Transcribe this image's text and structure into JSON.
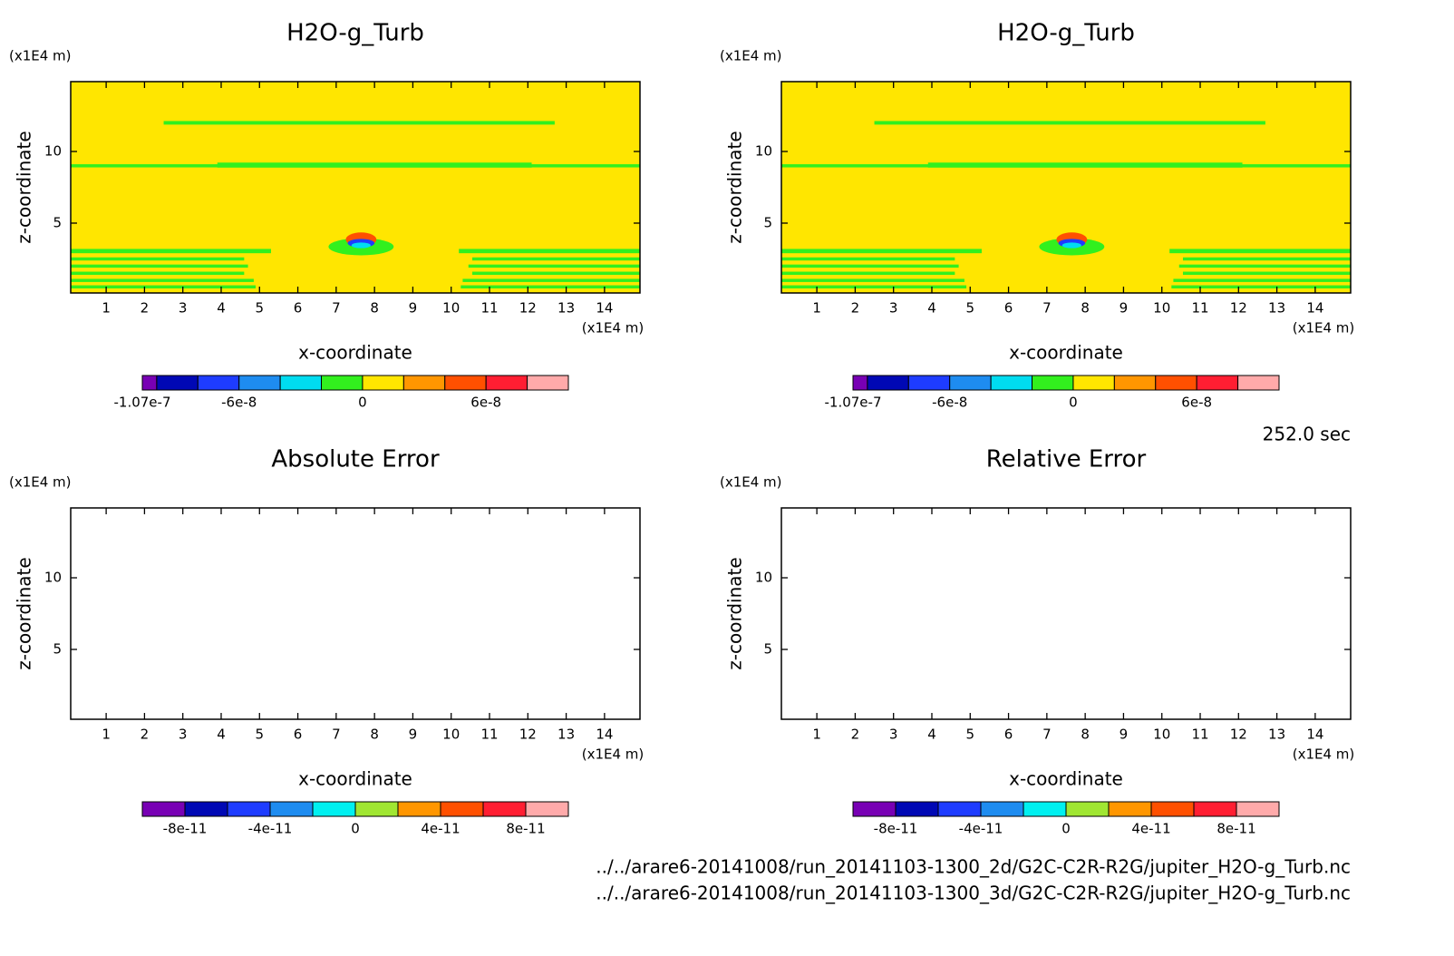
{
  "chart_data": [
    {
      "type": "contour",
      "title": "H2O-g_Turb",
      "x_label": "x-coordinate",
      "y_label": "z-coordinate",
      "x_unit": "(x1E4 m)",
      "y_unit": "(x1E4 m)",
      "xlim": [
        0.075,
        14.925
      ],
      "ylim": [
        0.125,
        14.875
      ],
      "xticks": [
        1,
        2,
        3,
        4,
        5,
        6,
        7,
        8,
        9,
        10,
        11,
        12,
        13,
        14
      ],
      "yticks": [
        5,
        10
      ],
      "colorbar": {
        "levels": [
          -1.07e-07,
          -1e-07,
          -8e-08,
          -6e-08,
          -4e-08,
          -2e-08,
          0,
          2e-08,
          4e-08,
          6e-08,
          8e-08,
          1e-07
        ],
        "colors": [
          "#7800b4",
          "#0008b4",
          "#1e3cff",
          "#1e8cf0",
          "#00dcf0",
          "#32f01e",
          "#ffe600",
          "#ff9600",
          "#ff5000",
          "#ff1e32",
          "#ffaaaa"
        ],
        "ticks": [
          -1.07e-07,
          -6e-08,
          0,
          6e-08
        ]
      }
    },
    {
      "type": "contour",
      "title": "H2O-g_Turb",
      "x_label": "x-coordinate",
      "y_label": "z-coordinate",
      "x_unit": "(x1E4 m)",
      "y_unit": "(x1E4 m)",
      "xlim": [
        0.075,
        14.925
      ],
      "ylim": [
        0.125,
        14.875
      ],
      "xticks": [
        1,
        2,
        3,
        4,
        5,
        6,
        7,
        8,
        9,
        10,
        11,
        12,
        13,
        14
      ],
      "yticks": [
        5,
        10
      ],
      "colorbar": {
        "levels": [
          -1.07e-07,
          -1e-07,
          -8e-08,
          -6e-08,
          -4e-08,
          -2e-08,
          0,
          2e-08,
          4e-08,
          6e-08,
          8e-08,
          1e-07
        ],
        "colors": [
          "#7800b4",
          "#0008b4",
          "#1e3cff",
          "#1e8cf0",
          "#00dcf0",
          "#32f01e",
          "#ffe600",
          "#ff9600",
          "#ff5000",
          "#ff1e32",
          "#ffaaaa"
        ],
        "ticks": [
          -1.07e-07,
          -6e-08,
          0,
          6e-08
        ]
      }
    },
    {
      "type": "contour",
      "title": "Absolute Error",
      "x_label": "x-coordinate",
      "y_label": "z-coordinate",
      "x_unit": "(x1E4 m)",
      "y_unit": "(x1E4 m)",
      "xlim": [
        0.075,
        14.925
      ],
      "ylim": [
        0.125,
        14.875
      ],
      "xticks": [
        1,
        2,
        3,
        4,
        5,
        6,
        7,
        8,
        9,
        10,
        11,
        12,
        13,
        14
      ],
      "yticks": [
        5,
        10
      ],
      "colorbar": {
        "levels": [
          -1e-10,
          -8e-11,
          -6e-11,
          -4e-11,
          -2e-11,
          0,
          2e-11,
          4e-11,
          6e-11,
          8e-11,
          1e-10
        ],
        "colors": [
          "#7800b4",
          "#0008b4",
          "#1e3cff",
          "#1e8cf0",
          "#00f0f0",
          "#a0e632",
          "#ff9600",
          "#ff5000",
          "#ff1e32",
          "#ffaaaa"
        ],
        "ticks": [
          -8e-11,
          -4e-11,
          0,
          4e-11,
          8e-11
        ]
      }
    },
    {
      "type": "contour",
      "title": "Relative Error",
      "x_label": "x-coordinate",
      "y_label": "z-coordinate",
      "x_unit": "(x1E4 m)",
      "y_unit": "(x1E4 m)",
      "xlim": [
        0.075,
        14.925
      ],
      "ylim": [
        0.125,
        14.875
      ],
      "xticks": [
        1,
        2,
        3,
        4,
        5,
        6,
        7,
        8,
        9,
        10,
        11,
        12,
        13,
        14
      ],
      "yticks": [
        5,
        10
      ],
      "colorbar": {
        "levels": [
          -1e-10,
          -8e-11,
          -6e-11,
          -4e-11,
          -2e-11,
          0,
          2e-11,
          4e-11,
          6e-11,
          8e-11,
          1e-10
        ],
        "colors": [
          "#7800b4",
          "#0008b4",
          "#1e3cff",
          "#1e8cf0",
          "#00f0f0",
          "#a0e632",
          "#ff9600",
          "#ff5000",
          "#ff1e32",
          "#ffaaaa"
        ],
        "ticks": [
          -8e-11,
          -4e-11,
          0,
          4e-11,
          8e-11
        ]
      }
    }
  ],
  "time_label": "252.0 sec",
  "files": [
    "../../arare6-20141008/run_20141103-1300_2d/G2C-C2R-R2G/jupiter_H2O-g_Turb.nc",
    "../../arare6-20141008/run_20141103-1300_3d/G2C-C2R-R2G/jupiter_H2O-g_Turb.nc"
  ]
}
